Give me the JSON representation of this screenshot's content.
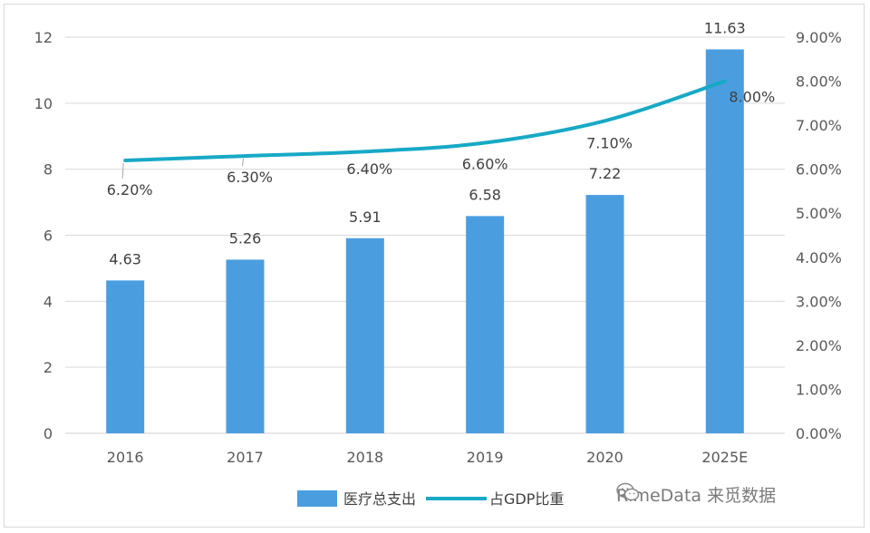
{
  "chart_data": {
    "type": "bar",
    "categories": [
      "2016",
      "2017",
      "2018",
      "2019",
      "2020",
      "2025E"
    ],
    "series": [
      {
        "name": "医疗总支出",
        "type": "bar",
        "axis": "left",
        "values": [
          4.63,
          5.26,
          5.91,
          6.58,
          7.22,
          11.63
        ],
        "labels": [
          "4.63",
          "5.26",
          "5.91",
          "6.58",
          "7.22",
          "11.63"
        ]
      },
      {
        "name": "占GDP比重",
        "type": "line",
        "axis": "right",
        "values": [
          6.2,
          6.3,
          6.4,
          6.6,
          7.1,
          8.0
        ],
        "labels": [
          "6.20%",
          "6.30%",
          "6.40%",
          "6.60%",
          "7.10%",
          "8.00%"
        ]
      }
    ],
    "left_axis": {
      "ylim": [
        0,
        12
      ],
      "ticks": [
        "0",
        "2",
        "4",
        "6",
        "8",
        "10",
        "12"
      ]
    },
    "right_axis": {
      "ylim": [
        0,
        9
      ],
      "ticks": [
        "0.00%",
        "1.00%",
        "2.00%",
        "3.00%",
        "4.00%",
        "5.00%",
        "6.00%",
        "7.00%",
        "8.00%",
        "9.00%"
      ]
    },
    "grid": true,
    "legend": "bottom",
    "title": "",
    "xlabel": "",
    "ylabel": ""
  },
  "colors": {
    "bar": "#4a9ee0",
    "line": "#17a9c6",
    "grid": "#d9d9d9",
    "axis": "#d0d0d0"
  },
  "watermark": {
    "text": "RimeData 来觅数据",
    "icon": "wechat-icon"
  }
}
